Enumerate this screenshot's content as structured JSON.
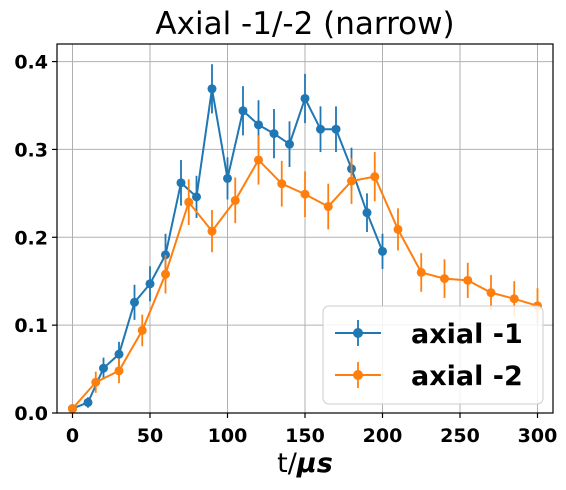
{
  "chart_data": {
    "type": "line",
    "title": "Axial -1/-2 (narrow)",
    "xlabel_prefix": "t/",
    "xlabel_unit": "μs",
    "ylabel": "",
    "xlim": [
      -10,
      310
    ],
    "ylim": [
      0,
      0.42
    ],
    "xticks": [
      0,
      50,
      100,
      150,
      200,
      250,
      300
    ],
    "yticks": [
      0.0,
      0.1,
      0.2,
      0.3,
      0.4
    ],
    "ytick_labels": [
      "0.0",
      "0.1",
      "0.2",
      "0.3",
      "0.4"
    ],
    "grid": true,
    "legend_position": "lower-right",
    "series": [
      {
        "name": "axial -1",
        "color": "#1f77b4",
        "x": [
          0,
          10,
          20,
          30,
          40,
          50,
          60,
          70,
          80,
          90,
          100,
          110,
          120,
          130,
          140,
          150,
          160,
          170,
          180,
          190,
          200
        ],
        "y": [
          0.005,
          0.012,
          0.051,
          0.067,
          0.126,
          0.147,
          0.18,
          0.262,
          0.246,
          0.369,
          0.267,
          0.344,
          0.328,
          0.318,
          0.306,
          0.358,
          0.323,
          0.323,
          0.278,
          0.228,
          0.184
        ],
        "err": [
          0.004,
          0.006,
          0.012,
          0.014,
          0.02,
          0.02,
          0.024,
          0.026,
          0.024,
          0.028,
          0.024,
          0.028,
          0.028,
          0.028,
          0.026,
          0.028,
          0.026,
          0.026,
          0.024,
          0.022,
          0.02
        ]
      },
      {
        "name": "axial -2",
        "color": "#ff7f0e",
        "x": [
          0,
          15,
          30,
          45,
          60,
          75,
          90,
          105,
          120,
          135,
          150,
          165,
          180,
          195,
          210,
          225,
          240,
          255,
          270,
          285,
          300
        ],
        "y": [
          0.005,
          0.035,
          0.048,
          0.094,
          0.158,
          0.24,
          0.207,
          0.242,
          0.288,
          0.261,
          0.249,
          0.235,
          0.264,
          0.269,
          0.209,
          0.16,
          0.153,
          0.151,
          0.137,
          0.13,
          0.122
        ],
        "err": [
          0.004,
          0.012,
          0.014,
          0.018,
          0.022,
          0.026,
          0.024,
          0.026,
          0.028,
          0.026,
          0.026,
          0.026,
          0.026,
          0.028,
          0.024,
          0.022,
          0.022,
          0.02,
          0.02,
          0.02,
          0.02
        ]
      }
    ]
  }
}
